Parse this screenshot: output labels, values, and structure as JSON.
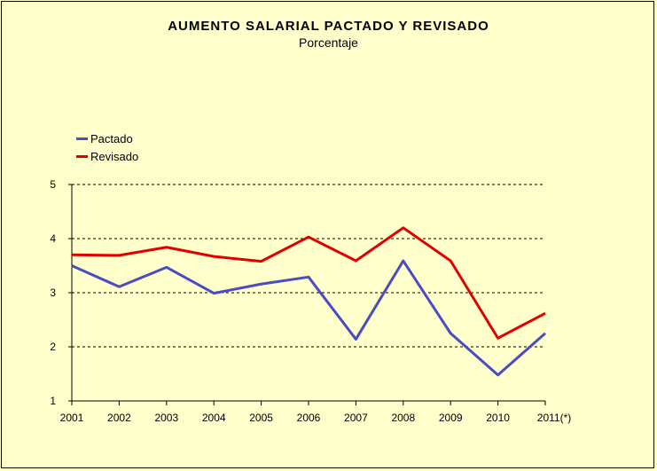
{
  "chart_data": {
    "type": "line",
    "title": "AUMENTO SALARIAL PACTADO  Y  REVISADO",
    "subtitle": "Porcentaje",
    "categories": [
      "2001",
      "2002",
      "2003",
      "2004",
      "2005",
      "2006",
      "2007",
      "2008",
      "2009",
      "2010",
      "2011(*)"
    ],
    "series": [
      {
        "name": "Pactado",
        "color": "#4b4bc3",
        "values": [
          3.5,
          3.11,
          3.47,
          2.99,
          3.16,
          3.29,
          2.14,
          3.59,
          2.25,
          1.48,
          2.25
        ]
      },
      {
        "name": "Revisado",
        "color": "#e00000",
        "values": [
          3.7,
          3.69,
          3.84,
          3.67,
          3.58,
          4.03,
          3.59,
          4.2,
          3.59,
          2.16,
          2.62
        ]
      }
    ],
    "yticks": [
      1,
      2,
      3,
      4,
      5
    ],
    "ylim": [
      1,
      5
    ],
    "grid": "horizontal dashed",
    "legend_position": "top-left"
  }
}
